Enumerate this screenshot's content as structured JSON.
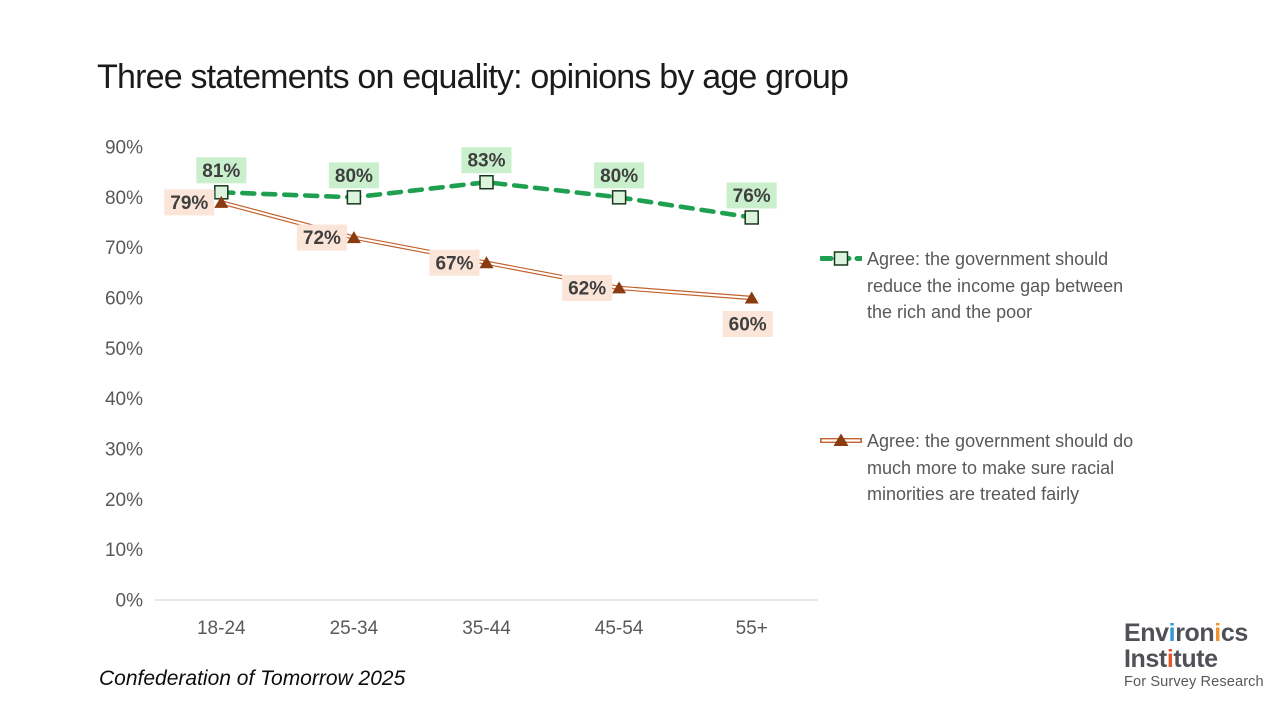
{
  "title": "Three statements on equality: opinions by age group",
  "source": "Confederation of Tomorrow 2025",
  "chart_data": {
    "type": "line",
    "title": "Three statements on equality: opinions by age group",
    "categories": [
      "18-24",
      "25-34",
      "35-44",
      "45-54",
      "55+"
    ],
    "series": [
      {
        "name": "Agree: the government should reduce the income gap between the rich and the poor",
        "values": [
          81,
          80,
          83,
          80,
          76
        ],
        "color": "#1ea050",
        "line_style": "dashed",
        "marker": "square",
        "marker_fill": "#dcf3dd",
        "marker_stroke": "#16381c",
        "label_bg": "#c9efcd",
        "label_positions": [
          "above",
          "above",
          "above",
          "above",
          "above"
        ]
      },
      {
        "name": "Agree: the government should do much more to make sure racial minorities are treated fairly",
        "values": [
          79,
          72,
          67,
          62,
          60
        ],
        "color": "#c2622e",
        "line_style": "double",
        "marker": "triangle",
        "marker_color": "#8a3b10",
        "label_bg": "#fbe5d8",
        "label_positions": [
          "left",
          "left",
          "left",
          "left",
          "below"
        ]
      }
    ],
    "xlabel": "",
    "ylabel": "",
    "ylim": [
      0,
      90
    ],
    "y_tick_step": 10,
    "y_tick_format": "percent",
    "grid": "off",
    "legend_position": "right",
    "axis_color": "#d9d9d9",
    "tick_label_color": "#595959",
    "data_label_color": "#3f3f3f"
  },
  "legend": {
    "items": [
      {
        "text": "Agree: the government should\nreduce the income gap between\nthe rich and the poor"
      },
      {
        "text": "Agree: the government should do\nmuch more to make sure racial\nminorities are treated fairly"
      }
    ]
  },
  "logo": {
    "line1": [
      {
        "t": "Env",
        "c": ""
      },
      {
        "t": "i",
        "c": "#2e9bd6"
      },
      {
        "t": "ron",
        "c": ""
      },
      {
        "t": "i",
        "c": "#f0922e"
      },
      {
        "t": "cs",
        "c": ""
      }
    ],
    "line2": [
      {
        "t": "Inst",
        "c": ""
      },
      {
        "t": "i",
        "c": "#e2582c"
      },
      {
        "t": "tute",
        "c": ""
      }
    ],
    "tagline": "For Survey Research"
  }
}
